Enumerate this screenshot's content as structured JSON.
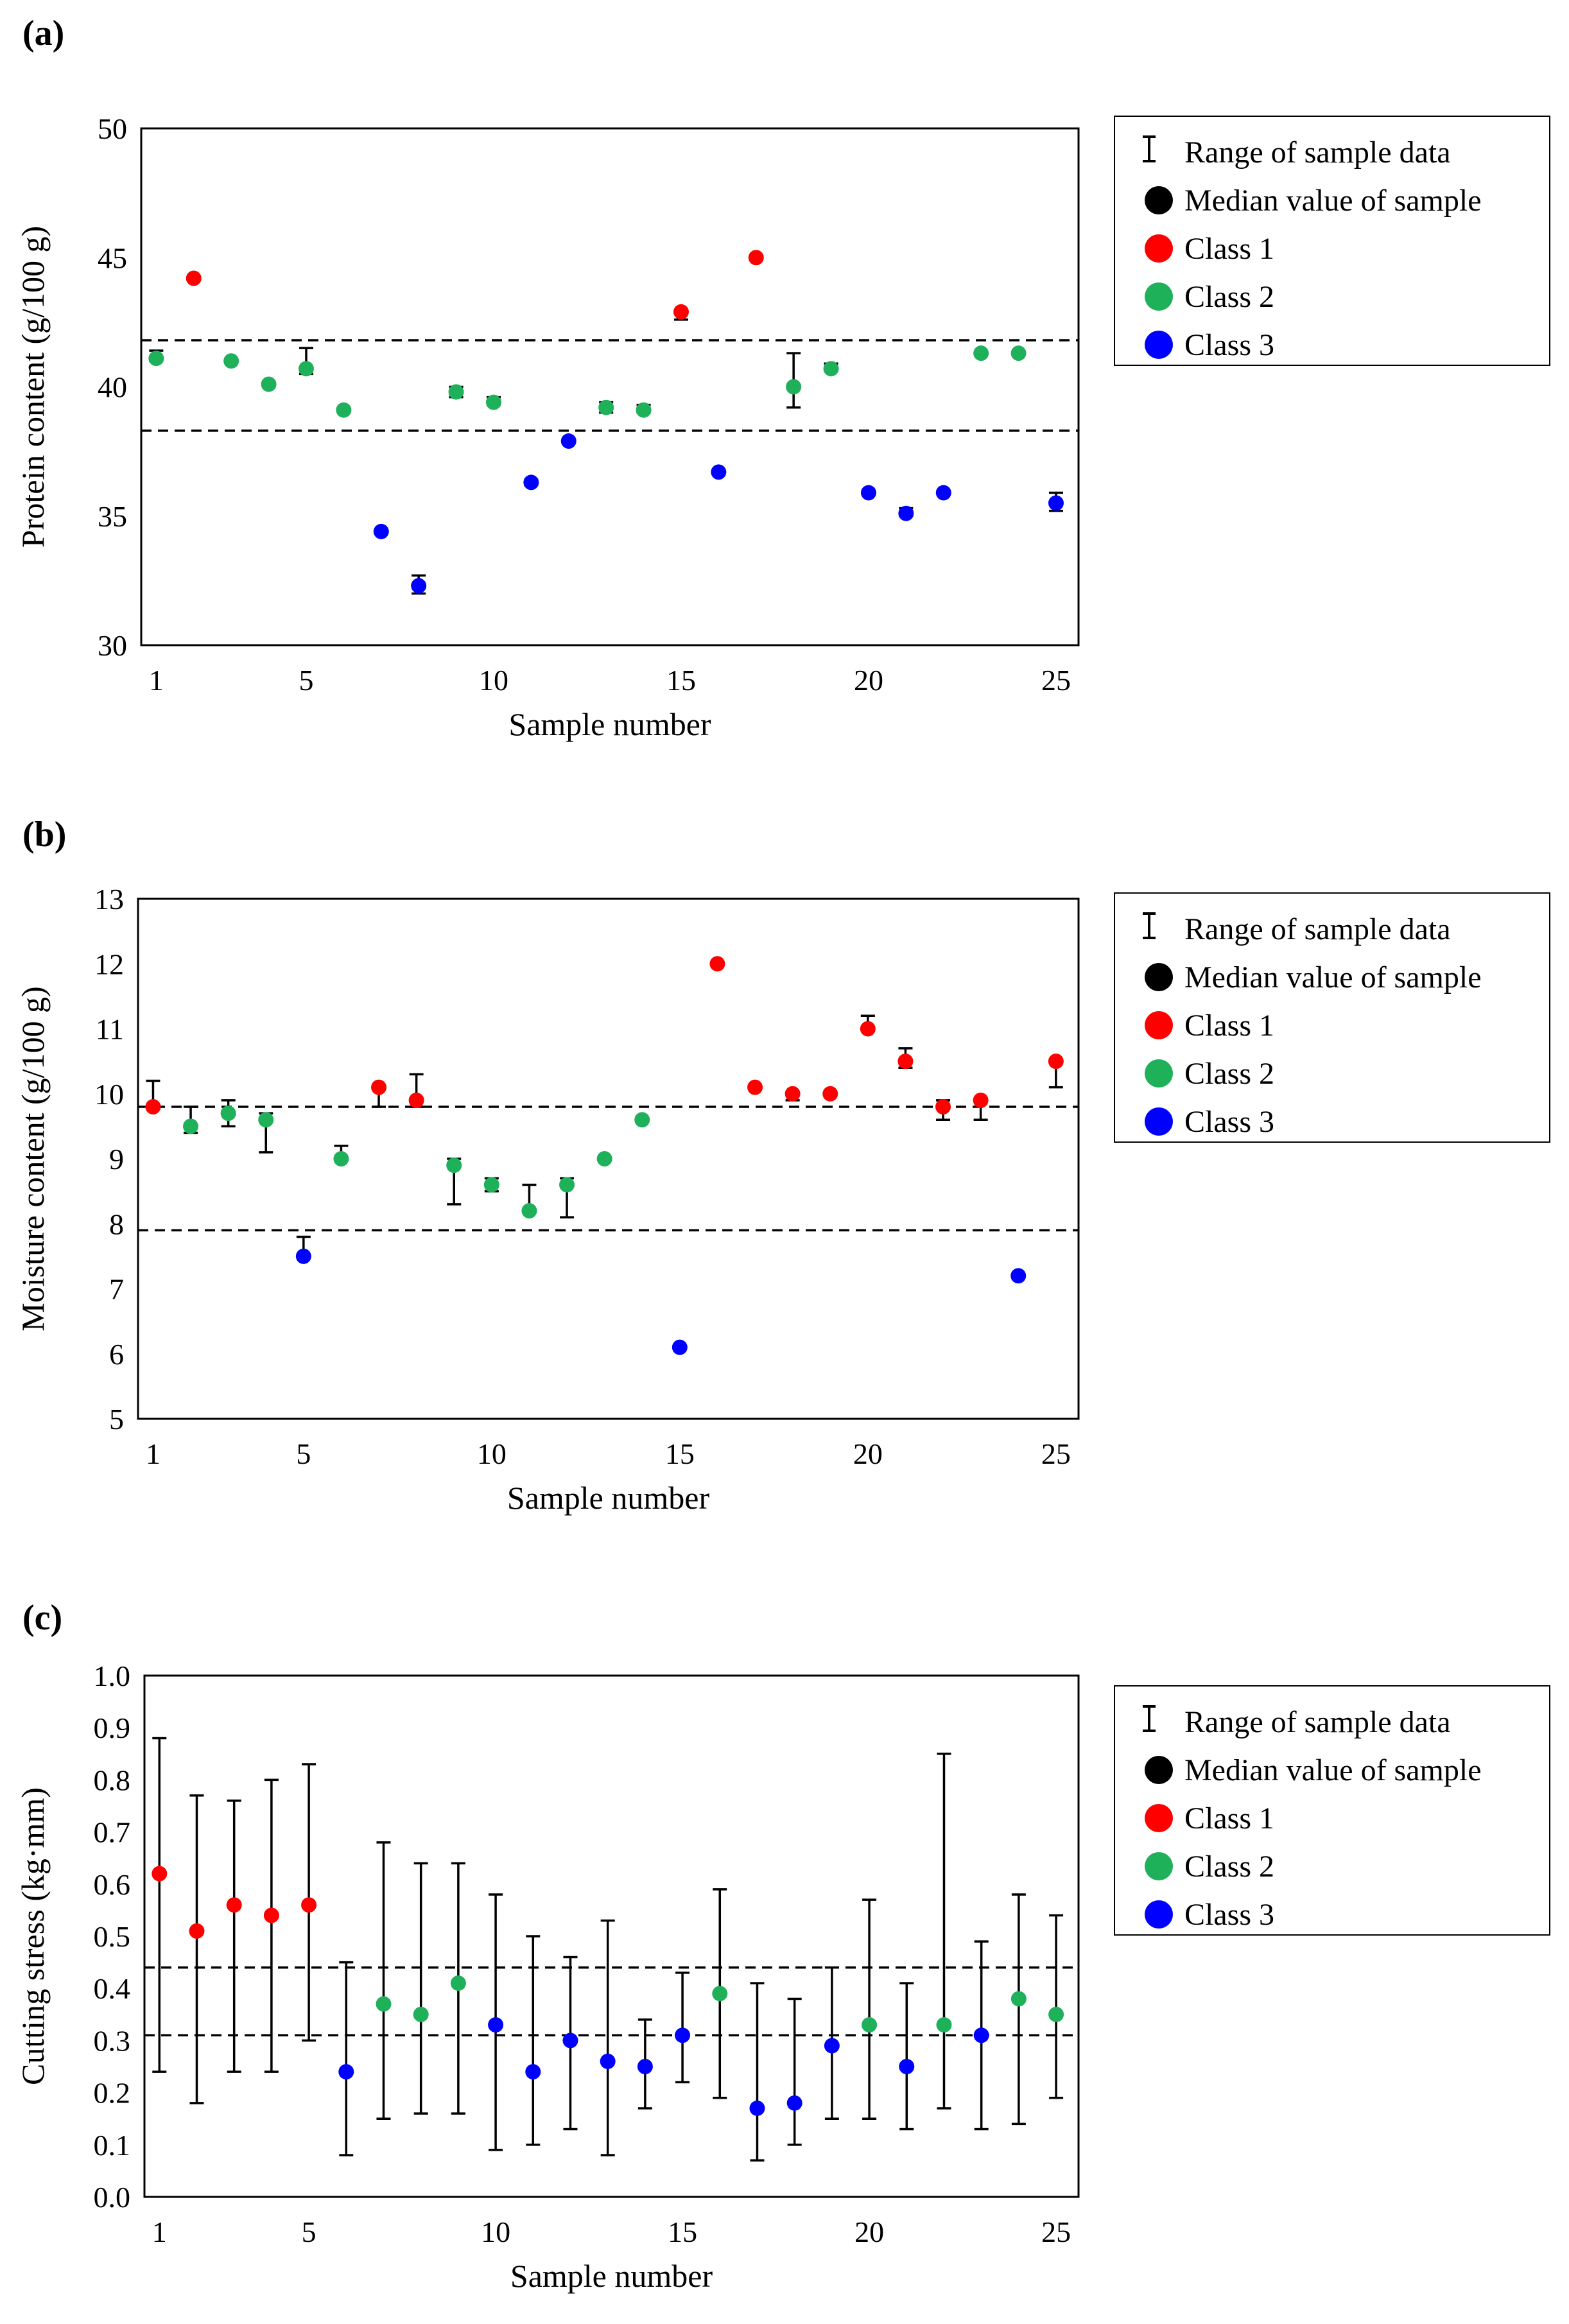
{
  "colors": {
    "class1": "#ff0000",
    "class2": "#1fb05a",
    "class3": "#0000ff",
    "median": "#000000",
    "axis": "#000000"
  },
  "legend": {
    "items": [
      {
        "label": "Range of sample data",
        "symbol": "range-bar-icon",
        "color": "#000000"
      },
      {
        "label": "Median value of  sample",
        "symbol": "dot",
        "color": "#000000"
      },
      {
        "label": "Class 1",
        "symbol": "dot",
        "color": "#ff0000"
      },
      {
        "label": "Class 2",
        "symbol": "dot",
        "color": "#1fb05a"
      },
      {
        "label": "Class 3",
        "symbol": "dot",
        "color": "#0000ff"
      }
    ]
  },
  "chart_data": [
    {
      "panel_label": "(a)",
      "type": "scatter",
      "xlabel": "Sample number",
      "ylabel": "Protein content (g/100 g)",
      "ylim": [
        30,
        50
      ],
      "yticks": [
        "30",
        "35",
        "40",
        "45",
        "50"
      ],
      "xticks": [
        "1",
        "5",
        "10",
        "15",
        "20",
        "25"
      ],
      "xtick_values": [
        1,
        5,
        10,
        15,
        20,
        25
      ],
      "xlim": [
        0.6,
        25.6
      ],
      "thresholds": [
        41.8,
        38.3
      ],
      "points": [
        {
          "x": 1,
          "y": 41.1,
          "lo": 41.0,
          "hi": 41.4,
          "class": 2
        },
        {
          "x": 2,
          "y": 44.2,
          "lo": 44.2,
          "hi": 44.2,
          "class": 1
        },
        {
          "x": 3,
          "y": 41.0,
          "lo": 41.0,
          "hi": 41.0,
          "class": 2
        },
        {
          "x": 4,
          "y": 40.1,
          "lo": 40.1,
          "hi": 40.1,
          "class": 2
        },
        {
          "x": 5,
          "y": 40.7,
          "lo": 40.5,
          "hi": 41.5,
          "class": 2
        },
        {
          "x": 6,
          "y": 39.1,
          "lo": 39.1,
          "hi": 39.1,
          "class": 2
        },
        {
          "x": 7,
          "y": 34.4,
          "lo": 34.4,
          "hi": 34.4,
          "class": 3
        },
        {
          "x": 8,
          "y": 32.3,
          "lo": 32.0,
          "hi": 32.7,
          "class": 3
        },
        {
          "x": 9,
          "y": 39.8,
          "lo": 39.6,
          "hi": 40.0,
          "class": 2
        },
        {
          "x": 10,
          "y": 39.4,
          "lo": 39.3,
          "hi": 39.6,
          "class": 2
        },
        {
          "x": 11,
          "y": 36.3,
          "lo": 36.2,
          "hi": 36.4,
          "class": 3
        },
        {
          "x": 12,
          "y": 37.9,
          "lo": 37.9,
          "hi": 37.9,
          "class": 3
        },
        {
          "x": 13,
          "y": 39.2,
          "lo": 39.0,
          "hi": 39.4,
          "class": 2
        },
        {
          "x": 14,
          "y": 39.1,
          "lo": 39.0,
          "hi": 39.3,
          "class": 2
        },
        {
          "x": 15,
          "y": 42.9,
          "lo": 42.6,
          "hi": 42.9,
          "class": 1
        },
        {
          "x": 16,
          "y": 36.7,
          "lo": 36.7,
          "hi": 36.7,
          "class": 3
        },
        {
          "x": 17,
          "y": 45.0,
          "lo": 45.0,
          "hi": 45.0,
          "class": 1
        },
        {
          "x": 18,
          "y": 40.0,
          "lo": 39.2,
          "hi": 41.3,
          "class": 2
        },
        {
          "x": 19,
          "y": 40.7,
          "lo": 40.6,
          "hi": 40.9,
          "class": 2
        },
        {
          "x": 20,
          "y": 35.9,
          "lo": 35.9,
          "hi": 35.9,
          "class": 3
        },
        {
          "x": 21,
          "y": 35.1,
          "lo": 35.0,
          "hi": 35.3,
          "class": 3
        },
        {
          "x": 22,
          "y": 35.9,
          "lo": 35.9,
          "hi": 35.9,
          "class": 3
        },
        {
          "x": 23,
          "y": 41.3,
          "lo": 41.3,
          "hi": 41.3,
          "class": 2
        },
        {
          "x": 24,
          "y": 41.3,
          "lo": 41.3,
          "hi": 41.3,
          "class": 2
        },
        {
          "x": 25,
          "y": 35.5,
          "lo": 35.2,
          "hi": 35.9,
          "class": 3
        }
      ]
    },
    {
      "panel_label": "(b)",
      "type": "scatter",
      "xlabel": "Sample number",
      "ylabel": "Moisture content (g/100 g)",
      "ylim": [
        5,
        13
      ],
      "yticks": [
        "5",
        "6",
        "7",
        "8",
        "9",
        "10",
        "11",
        "12",
        "13"
      ],
      "xticks": [
        "1",
        "5",
        "10",
        "15",
        "20",
        "25"
      ],
      "xtick_values": [
        1,
        5,
        10,
        15,
        20,
        25
      ],
      "xlim": [
        0.6,
        25.6
      ],
      "thresholds": [
        9.8,
        7.9
      ],
      "points": [
        {
          "x": 1,
          "y": 9.8,
          "lo": 9.8,
          "hi": 10.2,
          "class": 1
        },
        {
          "x": 2,
          "y": 9.5,
          "lo": 9.4,
          "hi": 9.8,
          "class": 2
        },
        {
          "x": 3,
          "y": 9.7,
          "lo": 9.5,
          "hi": 9.9,
          "class": 2
        },
        {
          "x": 4,
          "y": 9.6,
          "lo": 9.1,
          "hi": 9.7,
          "class": 2
        },
        {
          "x": 5,
          "y": 7.5,
          "lo": 7.5,
          "hi": 7.8,
          "class": 3
        },
        {
          "x": 6,
          "y": 9.0,
          "lo": 9.0,
          "hi": 9.2,
          "class": 2
        },
        {
          "x": 7,
          "y": 10.1,
          "lo": 9.8,
          "hi": 10.1,
          "class": 1
        },
        {
          "x": 8,
          "y": 9.9,
          "lo": 9.8,
          "hi": 10.3,
          "class": 1
        },
        {
          "x": 9,
          "y": 8.9,
          "lo": 8.3,
          "hi": 9.0,
          "class": 2
        },
        {
          "x": 10,
          "y": 8.6,
          "lo": 8.5,
          "hi": 8.7,
          "class": 2
        },
        {
          "x": 11,
          "y": 8.2,
          "lo": 8.2,
          "hi": 8.6,
          "class": 2
        },
        {
          "x": 12,
          "y": 8.6,
          "lo": 8.1,
          "hi": 8.7,
          "class": 2
        },
        {
          "x": 13,
          "y": 9.0,
          "lo": 9.0,
          "hi": 9.0,
          "class": 2
        },
        {
          "x": 14,
          "y": 9.6,
          "lo": 9.6,
          "hi": 9.6,
          "class": 2
        },
        {
          "x": 15,
          "y": 6.1,
          "lo": 6.1,
          "hi": 6.1,
          "class": 3
        },
        {
          "x": 16,
          "y": 12.0,
          "lo": 12.0,
          "hi": 12.0,
          "class": 1
        },
        {
          "x": 17,
          "y": 10.1,
          "lo": 10.1,
          "hi": 10.1,
          "class": 1
        },
        {
          "x": 18,
          "y": 10.0,
          "lo": 9.9,
          "hi": 10.0,
          "class": 1
        },
        {
          "x": 19,
          "y": 10.0,
          "lo": 10.0,
          "hi": 10.0,
          "class": 1
        },
        {
          "x": 20,
          "y": 11.0,
          "lo": 11.0,
          "hi": 11.2,
          "class": 1
        },
        {
          "x": 21,
          "y": 10.5,
          "lo": 10.4,
          "hi": 10.7,
          "class": 1
        },
        {
          "x": 22,
          "y": 9.8,
          "lo": 9.6,
          "hi": 9.9,
          "class": 1
        },
        {
          "x": 23,
          "y": 9.9,
          "lo": 9.6,
          "hi": 9.9,
          "class": 1
        },
        {
          "x": 24,
          "y": 7.2,
          "lo": 7.2,
          "hi": 7.2,
          "class": 3
        },
        {
          "x": 25,
          "y": 10.5,
          "lo": 10.1,
          "hi": 10.5,
          "class": 1
        }
      ]
    },
    {
      "panel_label": "(c)",
      "type": "scatter",
      "xlabel": "Sample number",
      "ylabel": "Cutting stress (kg·mm)",
      "ylim": [
        0,
        1
      ],
      "yticks": [
        "0.0",
        "0.1",
        "0.2",
        "0.3",
        "0.4",
        "0.5",
        "0.6",
        "0.7",
        "0.8",
        "0.9",
        "1.0"
      ],
      "xticks": [
        "1",
        "5",
        "10",
        "15",
        "20",
        "25"
      ],
      "xtick_values": [
        1,
        5,
        10,
        15,
        20,
        25
      ],
      "xlim": [
        0.6,
        25.6
      ],
      "thresholds": [
        0.44,
        0.31
      ],
      "points": [
        {
          "x": 1,
          "y": 0.62,
          "lo": 0.24,
          "hi": 0.88,
          "class": 1
        },
        {
          "x": 2,
          "y": 0.51,
          "lo": 0.18,
          "hi": 0.77,
          "class": 1
        },
        {
          "x": 3,
          "y": 0.56,
          "lo": 0.24,
          "hi": 0.76,
          "class": 1
        },
        {
          "x": 4,
          "y": 0.54,
          "lo": 0.24,
          "hi": 0.8,
          "class": 1
        },
        {
          "x": 5,
          "y": 0.56,
          "lo": 0.3,
          "hi": 0.83,
          "class": 1
        },
        {
          "x": 6,
          "y": 0.24,
          "lo": 0.08,
          "hi": 0.45,
          "class": 3
        },
        {
          "x": 7,
          "y": 0.37,
          "lo": 0.15,
          "hi": 0.68,
          "class": 2
        },
        {
          "x": 8,
          "y": 0.35,
          "lo": 0.16,
          "hi": 0.64,
          "class": 2
        },
        {
          "x": 9,
          "y": 0.41,
          "lo": 0.16,
          "hi": 0.64,
          "class": 2
        },
        {
          "x": 10,
          "y": 0.33,
          "lo": 0.09,
          "hi": 0.58,
          "class": 3
        },
        {
          "x": 11,
          "y": 0.24,
          "lo": 0.1,
          "hi": 0.5,
          "class": 3
        },
        {
          "x": 12,
          "y": 0.3,
          "lo": 0.13,
          "hi": 0.46,
          "class": 3
        },
        {
          "x": 13,
          "y": 0.26,
          "lo": 0.08,
          "hi": 0.53,
          "class": 3
        },
        {
          "x": 14,
          "y": 0.25,
          "lo": 0.17,
          "hi": 0.34,
          "class": 3
        },
        {
          "x": 15,
          "y": 0.31,
          "lo": 0.22,
          "hi": 0.43,
          "class": 3
        },
        {
          "x": 16,
          "y": 0.39,
          "lo": 0.19,
          "hi": 0.59,
          "class": 2
        },
        {
          "x": 17,
          "y": 0.17,
          "lo": 0.07,
          "hi": 0.41,
          "class": 3
        },
        {
          "x": 18,
          "y": 0.18,
          "lo": 0.1,
          "hi": 0.38,
          "class": 3
        },
        {
          "x": 19,
          "y": 0.29,
          "lo": 0.15,
          "hi": 0.44,
          "class": 3
        },
        {
          "x": 20,
          "y": 0.33,
          "lo": 0.15,
          "hi": 0.57,
          "class": 2
        },
        {
          "x": 21,
          "y": 0.25,
          "lo": 0.13,
          "hi": 0.41,
          "class": 3
        },
        {
          "x": 22,
          "y": 0.33,
          "lo": 0.17,
          "hi": 0.85,
          "class": 2
        },
        {
          "x": 23,
          "y": 0.31,
          "lo": 0.13,
          "hi": 0.49,
          "class": 3
        },
        {
          "x": 24,
          "y": 0.38,
          "lo": 0.14,
          "hi": 0.58,
          "class": 2
        },
        {
          "x": 25,
          "y": 0.35,
          "lo": 0.19,
          "hi": 0.54,
          "class": 2
        }
      ]
    }
  ]
}
